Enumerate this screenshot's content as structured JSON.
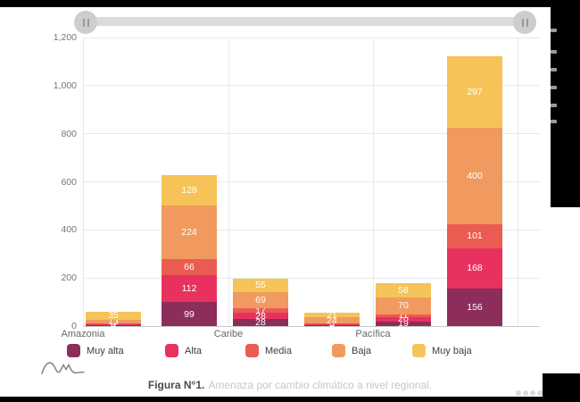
{
  "chart_data": {
    "type": "bar",
    "stacked": true,
    "title": "",
    "categories": [
      "Amazonia",
      "",
      "Caribe",
      "",
      "Pacífica",
      ""
    ],
    "series": [
      {
        "name": "Muy alta",
        "color": "#8C2D5C",
        "values": [
          4,
          99,
          28,
          6,
          19,
          156
        ]
      },
      {
        "name": "Alta",
        "color": "#E8315E",
        "values": [
          5,
          112,
          28,
          3,
          20,
          168
        ]
      },
      {
        "name": "Media",
        "color": "#EA5C52",
        "values": [
          4,
          66,
          17,
          3,
          11,
          101
        ]
      },
      {
        "name": "Baja",
        "color": "#F19A5F",
        "values": [
          13,
          224,
          69,
          24,
          70,
          400
        ]
      },
      {
        "name": "Muy baja",
        "color": "#F6C359",
        "values": [
          35,
          128,
          55,
          21,
          58,
          297
        ]
      }
    ],
    "ylim": [
      0,
      1200
    ],
    "yticks": [
      "0",
      "200",
      "400",
      "600",
      "800",
      "1,000",
      "1,200"
    ],
    "grid": true,
    "legend_position": "bottom",
    "data_labels": true,
    "data_label_color": "#FFFFFF"
  },
  "caption": {
    "prefix": "Figura N°1.",
    "text": "Amenaza por cambio climático a nivel regional."
  },
  "colors": {
    "slider_track": "#DBDBDB",
    "slider_handle": "#CDCDCD",
    "gridline": "#E9E9E9",
    "axis_text": "#767676"
  }
}
